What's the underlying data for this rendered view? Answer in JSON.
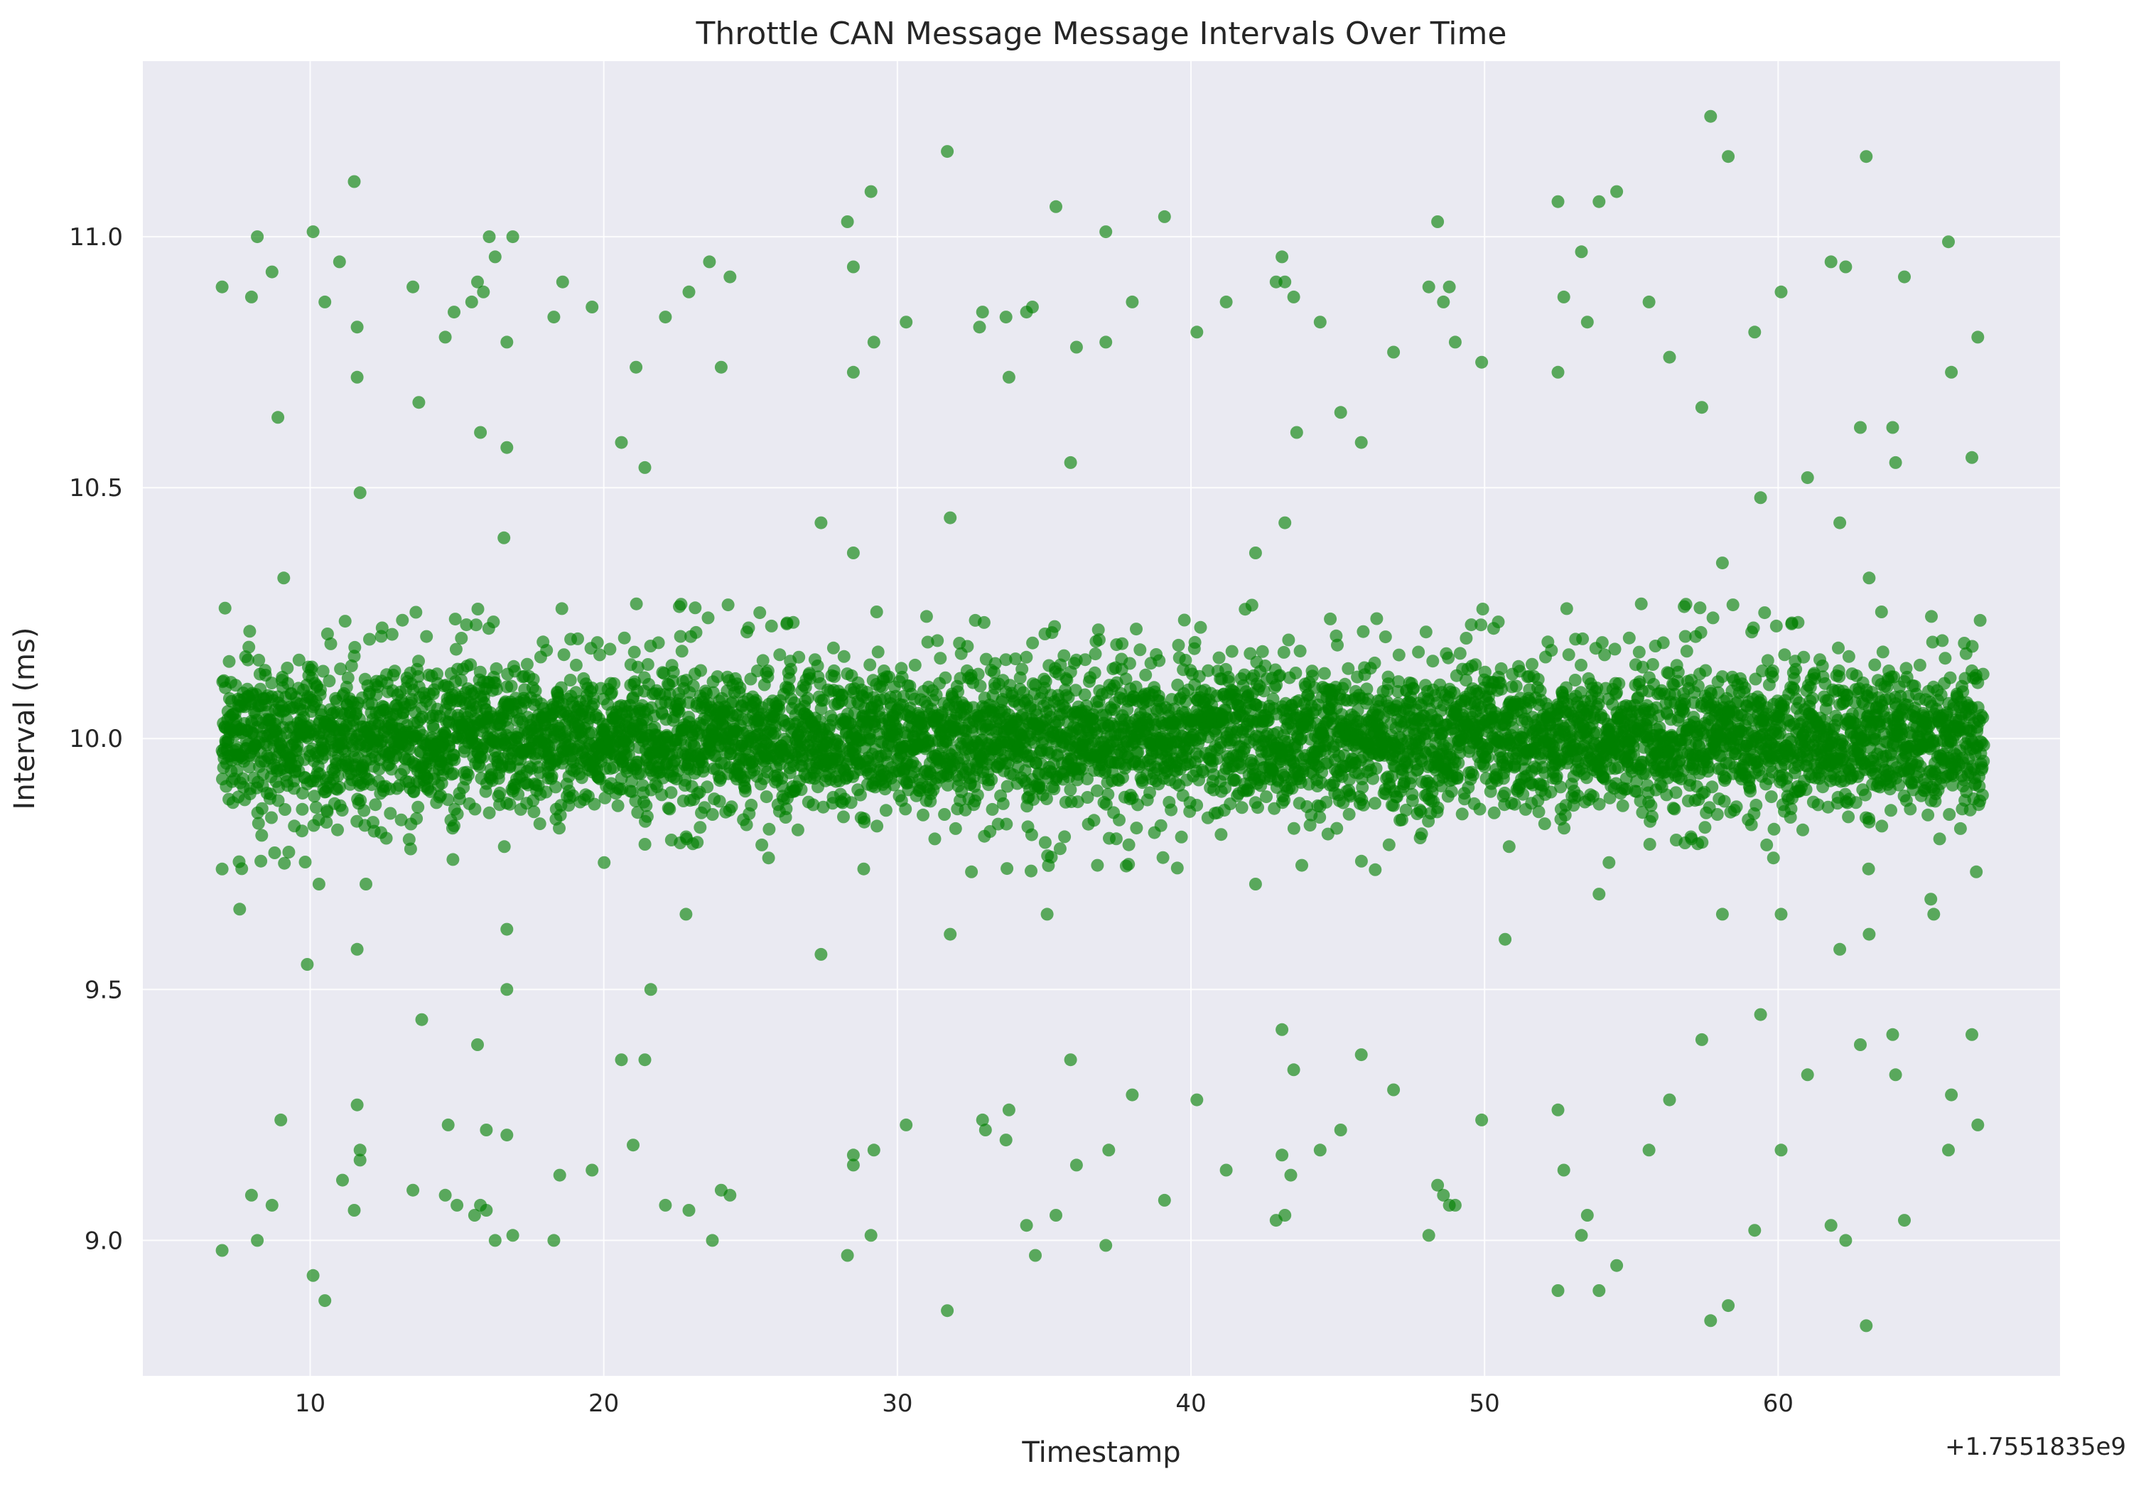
{
  "chart_data": {
    "type": "scatter",
    "title": "Throttle CAN Message Message Intervals Over Time",
    "xlabel": "Timestamp",
    "ylabel": "Interval (ms)",
    "x_offset_label": "+1.7551835e9",
    "xlim": [
      4.3,
      69.6
    ],
    "ylim": [
      8.73,
      11.35
    ],
    "xticks": [
      10,
      20,
      30,
      40,
      50,
      60
    ],
    "yticks": [
      9.0,
      9.5,
      10.0,
      10.5,
      11.0
    ],
    "ytick_labels": [
      "9.0",
      "9.5",
      "10.0",
      "10.5",
      "11.0"
    ],
    "grid": true,
    "legend": "none",
    "colors": {
      "background": "#eaeaf2",
      "grid": "#ffffff",
      "point": "#008000"
    },
    "core_band": {
      "description_values": "dense band of ~6000 points, evenly spread",
      "x_range": [
        7.0,
        67.0
      ],
      "center": 10.0,
      "spread_sd": 0.07
    },
    "series": [
      {
        "points": [
          [
            7.0,
            10.9
          ],
          [
            7.0,
            8.98
          ],
          [
            7.0,
            9.74
          ],
          [
            7.1,
            10.26
          ],
          [
            7.6,
            9.66
          ],
          [
            8.0,
            10.88
          ],
          [
            8.2,
            11.0
          ],
          [
            8.2,
            9.0
          ],
          [
            8.0,
            9.09
          ],
          [
            8.7,
            10.93
          ],
          [
            8.7,
            9.07
          ],
          [
            8.9,
            10.64
          ],
          [
            9.0,
            9.24
          ],
          [
            9.1,
            10.32
          ],
          [
            9.9,
            9.55
          ],
          [
            10.1,
            11.01
          ],
          [
            10.1,
            8.93
          ],
          [
            10.3,
            9.71
          ],
          [
            10.5,
            10.87
          ],
          [
            10.5,
            8.88
          ],
          [
            11.0,
            10.95
          ],
          [
            11.1,
            9.12
          ],
          [
            11.5,
            11.11
          ],
          [
            11.6,
            10.82
          ],
          [
            11.6,
            10.72
          ],
          [
            11.7,
            10.49
          ],
          [
            11.6,
            9.58
          ],
          [
            11.6,
            9.27
          ],
          [
            11.7,
            9.18
          ],
          [
            11.7,
            9.16
          ],
          [
            11.5,
            9.06
          ],
          [
            11.9,
            9.71
          ],
          [
            13.5,
            10.9
          ],
          [
            13.7,
            10.67
          ],
          [
            13.8,
            9.44
          ],
          [
            13.5,
            9.1
          ],
          [
            14.6,
            10.8
          ],
          [
            14.9,
            10.85
          ],
          [
            14.7,
            9.23
          ],
          [
            15.0,
            9.07
          ],
          [
            14.6,
            9.09
          ],
          [
            15.5,
            10.87
          ],
          [
            15.7,
            10.91
          ],
          [
            15.8,
            10.61
          ],
          [
            15.9,
            10.89
          ],
          [
            15.7,
            9.39
          ],
          [
            15.6,
            9.05
          ],
          [
            15.8,
            9.07
          ],
          [
            16.0,
            9.06
          ],
          [
            16.1,
            11.0
          ],
          [
            16.3,
            10.96
          ],
          [
            16.0,
            9.22
          ],
          [
            16.3,
            9.0
          ],
          [
            16.7,
            10.79
          ],
          [
            16.7,
            10.58
          ],
          [
            16.6,
            10.4
          ],
          [
            16.7,
            9.62
          ],
          [
            16.7,
            9.5
          ],
          [
            16.7,
            9.21
          ],
          [
            16.9,
            11.0
          ],
          [
            16.9,
            9.01
          ],
          [
            18.3,
            10.84
          ],
          [
            18.3,
            9.0
          ],
          [
            18.6,
            10.91
          ],
          [
            18.5,
            9.13
          ],
          [
            19.6,
            10.86
          ],
          [
            19.6,
            9.14
          ],
          [
            20.6,
            10.59
          ],
          [
            20.6,
            9.36
          ],
          [
            21.1,
            10.74
          ],
          [
            21.0,
            9.19
          ],
          [
            21.4,
            10.54
          ],
          [
            21.4,
            9.36
          ],
          [
            21.6,
            9.5
          ],
          [
            22.1,
            10.84
          ],
          [
            22.1,
            9.07
          ],
          [
            22.9,
            10.89
          ],
          [
            22.9,
            9.06
          ],
          [
            22.8,
            9.65
          ],
          [
            23.6,
            10.95
          ],
          [
            23.7,
            9.0
          ],
          [
            24.0,
            10.74
          ],
          [
            24.0,
            9.1
          ],
          [
            24.3,
            10.92
          ],
          [
            24.3,
            9.09
          ],
          [
            27.4,
            10.43
          ],
          [
            27.4,
            9.57
          ],
          [
            28.3,
            11.03
          ],
          [
            28.5,
            10.94
          ],
          [
            28.5,
            10.73
          ],
          [
            28.5,
            10.37
          ],
          [
            28.3,
            8.97
          ],
          [
            28.5,
            9.17
          ],
          [
            28.5,
            9.15
          ],
          [
            29.1,
            11.09
          ],
          [
            29.2,
            10.79
          ],
          [
            29.1,
            9.01
          ],
          [
            29.2,
            9.18
          ],
          [
            30.3,
            10.83
          ],
          [
            30.3,
            9.23
          ],
          [
            31.7,
            11.17
          ],
          [
            31.8,
            10.44
          ],
          [
            31.8,
            9.61
          ],
          [
            31.7,
            8.86
          ],
          [
            32.8,
            10.82
          ],
          [
            32.9,
            10.85
          ],
          [
            33.0,
            9.22
          ],
          [
            32.9,
            9.24
          ],
          [
            33.8,
            10.72
          ],
          [
            33.7,
            10.84
          ],
          [
            33.8,
            9.26
          ],
          [
            33.7,
            9.2
          ],
          [
            34.4,
            10.85
          ],
          [
            34.6,
            10.86
          ],
          [
            34.4,
            9.03
          ],
          [
            34.7,
            8.97
          ],
          [
            35.1,
            9.65
          ],
          [
            35.4,
            11.06
          ],
          [
            35.4,
            9.05
          ],
          [
            35.9,
            10.55
          ],
          [
            36.1,
            10.78
          ],
          [
            35.9,
            9.36
          ],
          [
            36.1,
            9.15
          ],
          [
            37.1,
            11.01
          ],
          [
            37.1,
            10.79
          ],
          [
            37.2,
            9.18
          ],
          [
            37.1,
            8.99
          ],
          [
            38.0,
            10.87
          ],
          [
            38.0,
            9.29
          ],
          [
            39.1,
            11.04
          ],
          [
            39.1,
            9.08
          ],
          [
            40.2,
            10.81
          ],
          [
            40.2,
            9.28
          ],
          [
            41.2,
            10.87
          ],
          [
            41.2,
            9.14
          ],
          [
            42.2,
            10.37
          ],
          [
            42.2,
            9.71
          ],
          [
            42.9,
            10.91
          ],
          [
            43.1,
            10.96
          ],
          [
            43.2,
            10.91
          ],
          [
            43.2,
            10.43
          ],
          [
            43.5,
            10.88
          ],
          [
            43.6,
            10.61
          ],
          [
            43.1,
            9.42
          ],
          [
            43.1,
            9.17
          ],
          [
            43.5,
            9.34
          ],
          [
            43.4,
            9.13
          ],
          [
            42.9,
            9.04
          ],
          [
            43.2,
            9.05
          ],
          [
            44.4,
            10.83
          ],
          [
            44.4,
            9.18
          ],
          [
            45.1,
            10.65
          ],
          [
            45.1,
            9.22
          ],
          [
            45.8,
            10.59
          ],
          [
            45.8,
            9.37
          ],
          [
            46.9,
            10.77
          ],
          [
            46.9,
            9.3
          ],
          [
            48.1,
            10.9
          ],
          [
            48.4,
            11.03
          ],
          [
            48.6,
            10.87
          ],
          [
            48.8,
            10.9
          ],
          [
            49.0,
            10.79
          ],
          [
            48.1,
            9.01
          ],
          [
            48.4,
            9.11
          ],
          [
            48.6,
            9.09
          ],
          [
            48.8,
            9.07
          ],
          [
            49.0,
            9.07
          ],
          [
            49.9,
            10.75
          ],
          [
            49.9,
            9.24
          ],
          [
            50.7,
            9.6
          ],
          [
            52.5,
            11.07
          ],
          [
            52.7,
            10.88
          ],
          [
            52.5,
            10.73
          ],
          [
            52.5,
            9.26
          ],
          [
            52.7,
            9.14
          ],
          [
            52.5,
            8.9
          ],
          [
            53.3,
            10.97
          ],
          [
            53.5,
            10.83
          ],
          [
            53.3,
            9.01
          ],
          [
            53.5,
            9.05
          ],
          [
            53.9,
            11.07
          ],
          [
            54.5,
            11.09
          ],
          [
            53.9,
            9.69
          ],
          [
            53.9,
            8.9
          ],
          [
            54.5,
            8.95
          ],
          [
            55.6,
            10.87
          ],
          [
            55.6,
            9.18
          ],
          [
            56.3,
            10.76
          ],
          [
            56.3,
            9.28
          ],
          [
            57.4,
            10.66
          ],
          [
            57.4,
            9.4
          ],
          [
            57.7,
            11.24
          ],
          [
            58.3,
            11.16
          ],
          [
            58.1,
            10.35
          ],
          [
            58.1,
            9.65
          ],
          [
            57.7,
            8.84
          ],
          [
            58.3,
            8.87
          ],
          [
            59.2,
            10.81
          ],
          [
            59.4,
            10.48
          ],
          [
            59.2,
            9.02
          ],
          [
            59.4,
            9.45
          ],
          [
            60.1,
            10.89
          ],
          [
            60.1,
            9.18
          ],
          [
            60.1,
            9.65
          ],
          [
            61.0,
            10.52
          ],
          [
            61.0,
            9.33
          ],
          [
            61.8,
            10.95
          ],
          [
            62.1,
            10.43
          ],
          [
            62.3,
            10.94
          ],
          [
            61.8,
            9.03
          ],
          [
            62.1,
            9.58
          ],
          [
            62.3,
            9.0
          ],
          [
            62.8,
            10.62
          ],
          [
            63.0,
            11.16
          ],
          [
            63.1,
            10.32
          ],
          [
            62.8,
            9.39
          ],
          [
            63.0,
            8.83
          ],
          [
            63.1,
            9.61
          ],
          [
            63.9,
            10.62
          ],
          [
            64.0,
            10.55
          ],
          [
            63.9,
            9.41
          ],
          [
            64.0,
            9.33
          ],
          [
            64.3,
            10.92
          ],
          [
            64.3,
            9.04
          ],
          [
            65.2,
            9.68
          ],
          [
            65.3,
            9.65
          ],
          [
            65.8,
            10.99
          ],
          [
            65.9,
            10.73
          ],
          [
            65.8,
            9.18
          ],
          [
            65.9,
            9.29
          ],
          [
            66.6,
            10.56
          ],
          [
            66.8,
            10.8
          ],
          [
            66.6,
            9.41
          ],
          [
            66.8,
            9.23
          ]
        ]
      }
    ]
  }
}
